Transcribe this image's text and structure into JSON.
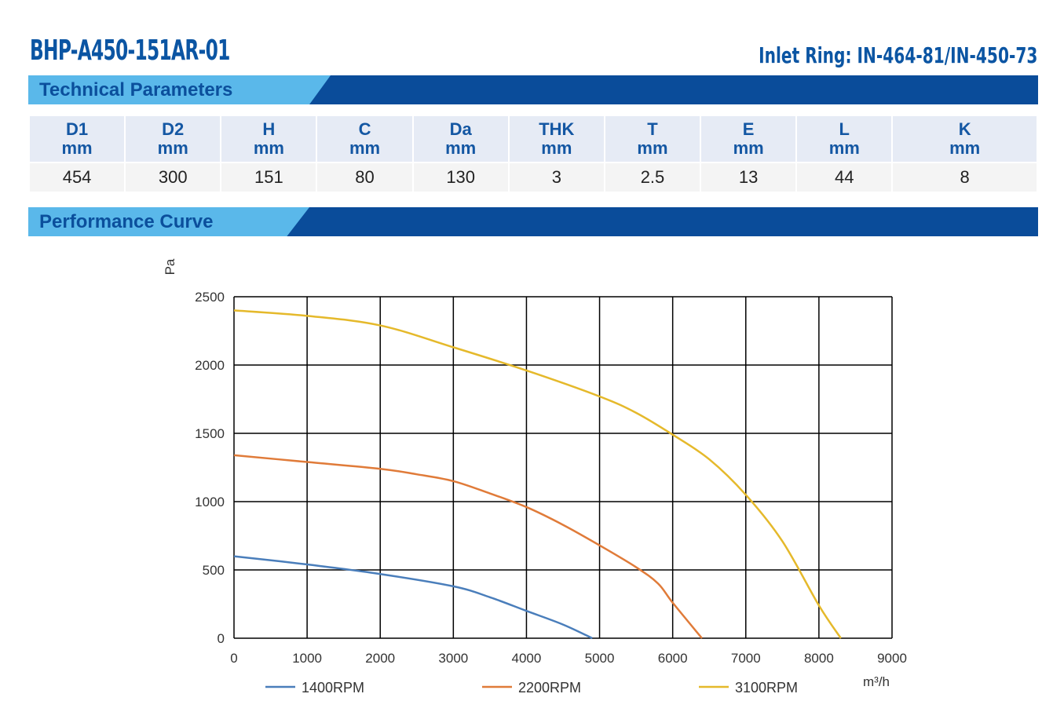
{
  "header": {
    "model": "BHP-A450-151AR-01",
    "inlet_ring": "Inlet Ring: IN-464-81/IN-450-73"
  },
  "sections": {
    "technical": "Technical Parameters",
    "performance": "Performance Curve"
  },
  "parameters": [
    {
      "name": "D1",
      "unit": "mm",
      "value": "454"
    },
    {
      "name": "D2",
      "unit": "mm",
      "value": "300"
    },
    {
      "name": "H",
      "unit": "mm",
      "value": "151"
    },
    {
      "name": "C",
      "unit": "mm",
      "value": "80"
    },
    {
      "name": "Da",
      "unit": "mm",
      "value": "130"
    },
    {
      "name": "THK",
      "unit": "mm",
      "value": "3"
    },
    {
      "name": "T",
      "unit": "mm",
      "value": "2.5"
    },
    {
      "name": "E",
      "unit": "mm",
      "value": "13"
    },
    {
      "name": "L",
      "unit": "mm",
      "value": "44"
    },
    {
      "name": "K",
      "unit": "mm",
      "value": "8"
    }
  ],
  "chart_data": {
    "type": "line",
    "title": "",
    "xlabel": "m³/h",
    "ylabel": "Pa",
    "xlim": [
      0,
      9000
    ],
    "ylim": [
      0,
      2500
    ],
    "xticks": [
      0,
      1000,
      2000,
      3000,
      4000,
      5000,
      6000,
      7000,
      8000,
      9000
    ],
    "yticks": [
      0,
      500,
      1000,
      1500,
      2000,
      2500
    ],
    "grid": true,
    "legend_position": "bottom",
    "series": [
      {
        "name": "1400RPM",
        "color": "#4a7ebb",
        "x": [
          0,
          1000,
          2000,
          3000,
          3500,
          4000,
          4500,
          4900
        ],
        "y": [
          600,
          540,
          470,
          380,
          300,
          200,
          100,
          0
        ]
      },
      {
        "name": "2200RPM",
        "color": "#e07b39",
        "x": [
          0,
          1000,
          2000,
          2500,
          3000,
          3500,
          4000,
          4500,
          5000,
          5500,
          5800,
          6000,
          6400
        ],
        "y": [
          1340,
          1290,
          1240,
          1200,
          1150,
          1060,
          960,
          830,
          680,
          520,
          400,
          260,
          0
        ]
      },
      {
        "name": "3100RPM",
        "color": "#e5b92b",
        "x": [
          0,
          1000,
          2000,
          3000,
          4000,
          5000,
          5500,
          6000,
          6500,
          7000,
          7500,
          8000,
          8300
        ],
        "y": [
          2400,
          2360,
          2290,
          2130,
          1960,
          1770,
          1650,
          1490,
          1310,
          1050,
          710,
          240,
          0
        ]
      }
    ]
  }
}
